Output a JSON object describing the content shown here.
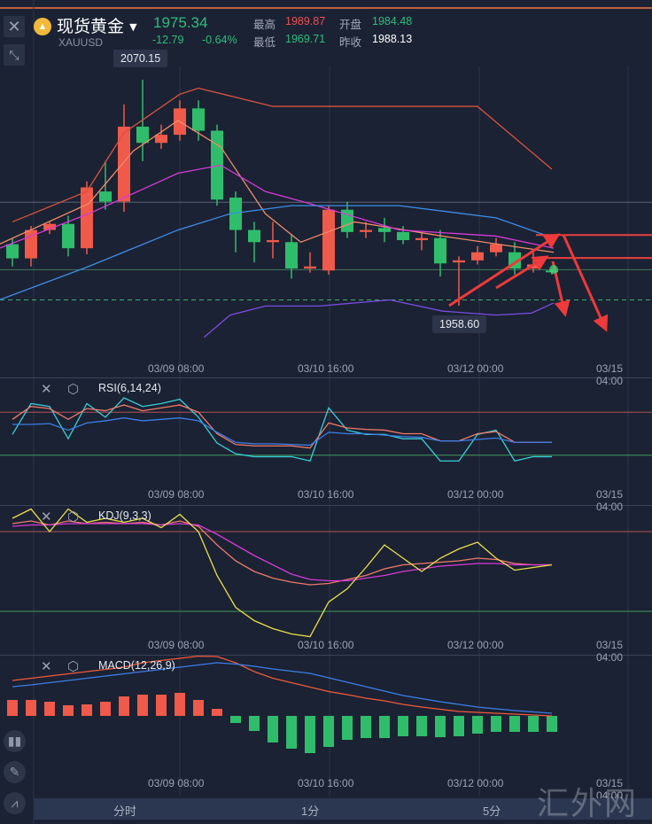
{
  "header": {
    "instrument_name": "现货黄金",
    "symbol": "XAUUSD",
    "last_price": "1975.34",
    "change": "-12.79",
    "change_pct": "-0.64%",
    "high_label": "最高",
    "high": "1989.87",
    "open_label": "开盘",
    "open": "1984.48",
    "low_label": "最低",
    "low": "1969.71",
    "prev_close_label": "昨收",
    "prev_close": "1988.13"
  },
  "main_chart": {
    "max_callout": "2070.15",
    "min_callout": "1958.60",
    "x_labels": [
      "03/09 08:00",
      "03/10 16:00",
      "03/12 00:00",
      "03/15 04:00"
    ]
  },
  "indicators": {
    "rsi": {
      "label": "RSI(6,14,24)"
    },
    "kdj": {
      "label": "KDJ(9,3,3)"
    },
    "macd": {
      "label": "MACD(12,26,9)"
    }
  },
  "tabs": [
    "分时",
    "1分",
    "5分"
  ],
  "watermark": "汇外网",
  "colors": {
    "up": "#ef5a4a",
    "down": "#2fbd6b",
    "background": "#1b2233",
    "tab_bar": "#2b3650"
  },
  "chart_data": [
    {
      "type": "candlestick",
      "title": "",
      "candles": [
        {
          "o": 1989,
          "c": 1982,
          "h": 1992,
          "l": 1978
        },
        {
          "o": 1982,
          "c": 1996,
          "h": 1998,
          "l": 1978
        },
        {
          "o": 1996,
          "c": 1999,
          "h": 2000,
          "l": 1994
        },
        {
          "o": 1999,
          "c": 1987,
          "h": 2003,
          "l": 1983
        },
        {
          "o": 1987,
          "c": 2017,
          "h": 2020,
          "l": 1984
        },
        {
          "o": 2015,
          "c": 2010,
          "h": 2030,
          "l": 2006
        },
        {
          "o": 2010,
          "c": 2047,
          "h": 2058,
          "l": 2005
        },
        {
          "o": 2047,
          "c": 2039,
          "h": 2070.15,
          "l": 2030
        },
        {
          "o": 2039,
          "c": 2043,
          "h": 2048,
          "l": 2036
        },
        {
          "o": 2043,
          "c": 2056,
          "h": 2060,
          "l": 2040
        },
        {
          "o": 2056,
          "c": 2045,
          "h": 2060,
          "l": 2040
        },
        {
          "o": 2045,
          "c": 2011,
          "h": 2048,
          "l": 2008
        },
        {
          "o": 2012,
          "c": 1996,
          "h": 2015,
          "l": 1985
        },
        {
          "o": 1996,
          "c": 1990,
          "h": 2000,
          "l": 1980
        },
        {
          "o": 1990,
          "c": 1991,
          "h": 2000,
          "l": 1982
        },
        {
          "o": 1990,
          "c": 1977,
          "h": 1994,
          "l": 1972
        },
        {
          "o": 1977,
          "c": 1978,
          "h": 1985,
          "l": 1975
        },
        {
          "o": 1976,
          "c": 2006,
          "h": 2008,
          "l": 1974
        },
        {
          "o": 2006,
          "c": 1995,
          "h": 2010,
          "l": 1992
        },
        {
          "o": 1995,
          "c": 1996,
          "h": 2000,
          "l": 1992
        },
        {
          "o": 1997,
          "c": 1995,
          "h": 2002,
          "l": 1990
        },
        {
          "o": 1995,
          "c": 1991,
          "h": 1998,
          "l": 1989
        },
        {
          "o": 1991,
          "c": 1992,
          "h": 1995,
          "l": 1986
        },
        {
          "o": 1992,
          "c": 1979.5,
          "h": 1996,
          "l": 1973
        },
        {
          "o": 1980,
          "c": 1981,
          "h": 1983,
          "l": 1958.6
        },
        {
          "o": 1981,
          "c": 1985,
          "h": 1988,
          "l": 1979
        },
        {
          "o": 1985,
          "c": 1989,
          "h": 1992,
          "l": 1983
        },
        {
          "o": 1985,
          "c": 1977,
          "h": 1990,
          "l": 1974
        },
        {
          "o": 1977,
          "c": 1979,
          "h": 1985,
          "l": 1975
        },
        {
          "o": 1976,
          "c": 1975.34,
          "h": 1977,
          "l": 1974
        }
      ],
      "overlays": [
        {
          "color": "#d9533f",
          "points": [
            [
              0,
              2000
            ],
            [
              4,
              2015
            ],
            [
              6,
              2044
            ],
            [
              9,
              2063
            ],
            [
              10,
              2066
            ],
            [
              14,
              2057
            ],
            [
              25,
              2057
            ],
            [
              29,
              2026
            ]
          ]
        },
        {
          "color": "#f08a6a",
          "points": [
            [
              -0.7,
              1989
            ],
            [
              4.1,
              2009
            ],
            [
              6.5,
              2035
            ],
            [
              8.9,
              2050
            ],
            [
              11.2,
              2037
            ],
            [
              13.6,
              2004
            ],
            [
              15.5,
              1990
            ],
            [
              18.4,
              2000
            ],
            [
              23.1,
              1993
            ],
            [
              29.1,
              1985
            ]
          ]
        },
        {
          "color": "#d63ad8",
          "points": [
            [
              -0.7,
              1987
            ],
            [
              4.1,
              2004
            ],
            [
              8.9,
              2024
            ],
            [
              11.2,
              2028
            ],
            [
              13.6,
              2015
            ],
            [
              16,
              2009
            ],
            [
              20.8,
              1996
            ],
            [
              26,
              1993
            ],
            [
              29.1,
              1987
            ]
          ]
        },
        {
          "color": "#3d8ee8",
          "points": [
            [
              -0.7,
              1961.5
            ],
            [
              4.1,
              1978
            ],
            [
              8.9,
              1996
            ],
            [
              11.7,
              2004
            ],
            [
              15,
              2008
            ],
            [
              20.8,
              2008
            ],
            [
              26,
              2002
            ],
            [
              29.1,
              1992
            ]
          ]
        },
        {
          "color": "#7a4de0",
          "points": [
            [
              10.3,
              1943
            ],
            [
              11.7,
              1954
            ],
            [
              13.6,
              1958.5
            ],
            [
              16.5,
              1958.5
            ],
            [
              20.3,
              1961.5
            ],
            [
              23.1,
              1956
            ],
            [
              26,
              1954
            ],
            [
              27.9,
              1955
            ],
            [
              29.1,
              1960
            ]
          ]
        }
      ],
      "horizontal_levels": [
        {
          "value": 2009.7,
          "color": "#5a6276",
          "style": "solid"
        },
        {
          "value": 1976.4,
          "color": "#3f7a5a",
          "style": "solid"
        },
        {
          "value": 1961.5,
          "color": "#3fae6a",
          "style": "dashed"
        }
      ],
      "drawn_levels": [
        {
          "value": 1993.5,
          "color": "#e84040"
        },
        {
          "value": 1982.2,
          "color": "#e84040"
        }
      ]
    },
    {
      "type": "line",
      "title": "RSI(6,14,24)",
      "ylim": [
        0,
        100
      ],
      "levels": [
        80,
        20
      ],
      "series": [
        {
          "color": "#35d0d8",
          "values": [
            49,
            92,
            88,
            43,
            92,
            73,
            100,
            88,
            92,
            98,
            73,
            37,
            22,
            18,
            18,
            18,
            12,
            86,
            55,
            49,
            49,
            43,
            43,
            12,
            12,
            49,
            55,
            12,
            18,
            18
          ]
        },
        {
          "color": "#ef7a6a",
          "values": [
            70,
            88,
            85,
            70,
            85,
            82,
            90,
            82,
            86,
            90,
            80,
            50,
            35,
            33,
            33,
            33,
            30,
            65,
            58,
            56,
            55,
            50,
            50,
            40,
            40,
            50,
            53,
            38,
            38,
            38
          ]
        },
        {
          "color": "#3d7ee8",
          "values": [
            63,
            63,
            64,
            55,
            65,
            68,
            72,
            68,
            70,
            72,
            68,
            52,
            38,
            36,
            36,
            35,
            34,
            52,
            50,
            50,
            48,
            46,
            45,
            40,
            40,
            42,
            44,
            38,
            38,
            38
          ]
        }
      ]
    },
    {
      "type": "line",
      "title": "KDJ(9,3,3)",
      "ylim": [
        0,
        100
      ],
      "levels": [
        80,
        20
      ],
      "series": [
        {
          "color": "#ef7a6a",
          "values": [
            86,
            88,
            85,
            88,
            86,
            87,
            86,
            87,
            85,
            88,
            84,
            70,
            58,
            50,
            45,
            42,
            40,
            41,
            44,
            47,
            52,
            55,
            56,
            57,
            58,
            60,
            59,
            56,
            55,
            55
          ]
        },
        {
          "color": "#d63ad8",
          "values": [
            84,
            85,
            85,
            86,
            86,
            86,
            86,
            86,
            85,
            86,
            85,
            78,
            70,
            62,
            55,
            48,
            44,
            43,
            43,
            45,
            47,
            50,
            52,
            54,
            55,
            56,
            56,
            55,
            55,
            55
          ]
        },
        {
          "color": "#e8e04a",
          "values": [
            90,
            97,
            80,
            97,
            87,
            90,
            87,
            90,
            83,
            93,
            80,
            47,
            23,
            13,
            7,
            3,
            1,
            27,
            37,
            53,
            70,
            60,
            50,
            60,
            67,
            72,
            60,
            51,
            53,
            55
          ]
        }
      ]
    },
    {
      "type": "bar+line",
      "title": "MACD(12,26,9)",
      "histogram": [
        3.6,
        3.6,
        3.2,
        2.4,
        2.6,
        3.2,
        4.4,
        4.8,
        4.8,
        5.2,
        3.6,
        1.6,
        -1.6,
        -3.4,
        -6,
        -7.4,
        -8.4,
        -7,
        -5.4,
        -5,
        -5,
        -4.6,
        -4.6,
        -4.8,
        -4.6,
        -4,
        -3.6,
        -3.6,
        -3.6,
        -3.6
      ],
      "series": [
        {
          "color": "#ef5a3a",
          "values": [
            8,
            8.5,
            9,
            9.5,
            10,
            10.5,
            11,
            12,
            12.5,
            13,
            13.5,
            13.4,
            12,
            10,
            8.5,
            7.5,
            6.5,
            5.5,
            4.8,
            4,
            3.4,
            2.6,
            2,
            1.5,
            1,
            0.8,
            0.6,
            0.4,
            0.2,
            0
          ]
        },
        {
          "color": "#3d7ee8",
          "values": [
            6.6,
            7,
            7.5,
            8,
            8.5,
            9,
            9.5,
            10,
            10.5,
            11,
            11.5,
            12,
            11.7,
            11.2,
            10.6,
            10.1,
            9.6,
            8.6,
            7.6,
            6.6,
            5.6,
            4.6,
            3.9,
            3.2,
            2.6,
            2,
            1.6,
            1.2,
            0.9,
            0.6
          ]
        }
      ]
    }
  ]
}
